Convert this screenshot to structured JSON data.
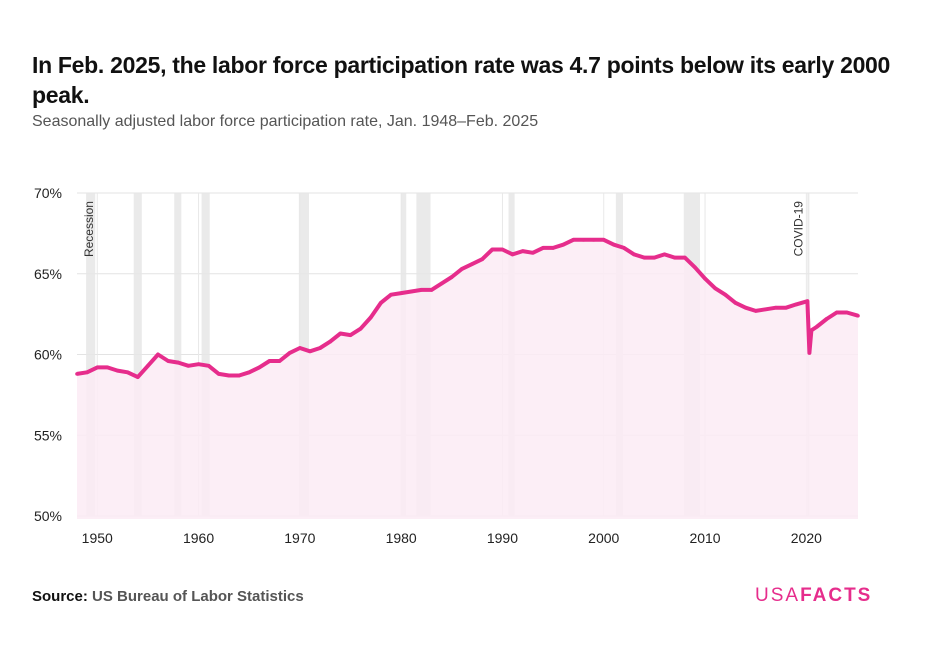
{
  "title": "In Feb. 2025, the labor force participation rate was 4.7 points below its early 2000 peak.",
  "subtitle": "Seasonally adjusted labor force participation rate, Jan. 1948–Feb. 2025",
  "source_label": "Source:",
  "source_value": "US Bureau of Labor Statistics",
  "logo": {
    "part1": "USA",
    "part2": "FACTS"
  },
  "colors": {
    "line": "#e62d8c",
    "fill": "#fcebf4",
    "recession": "#e6e6e6"
  },
  "chart_data": {
    "type": "area",
    "xlim": [
      1948,
      2025.1
    ],
    "ylim": [
      50,
      70
    ],
    "y_ticks": [
      50,
      55,
      60,
      65,
      70
    ],
    "y_tick_labels": [
      "50%",
      "55%",
      "60%",
      "65%",
      "70%"
    ],
    "x_ticks": [
      1950,
      1960,
      1970,
      1980,
      1990,
      2000,
      2010,
      2020
    ],
    "x_tick_labels": [
      "1950",
      "1960",
      "1970",
      "1980",
      "1990",
      "2000",
      "2010",
      "2020"
    ],
    "grid": true,
    "annotations": [
      {
        "text": "Recession",
        "x": 1949.9
      },
      {
        "text": "COVID-19",
        "x": 2019.9
      }
    ],
    "recessions": [
      [
        1948.9,
        1949.8
      ],
      [
        1953.6,
        1954.4
      ],
      [
        1957.6,
        1958.3
      ],
      [
        1960.3,
        1961.1
      ],
      [
        1969.9,
        1970.9
      ],
      [
        1980.0,
        1980.5
      ],
      [
        1981.5,
        1982.9
      ],
      [
        1990.6,
        1991.2
      ],
      [
        2001.2,
        2001.9
      ],
      [
        2007.9,
        2009.5
      ],
      [
        2020.1,
        2020.3
      ]
    ],
    "series": [
      {
        "x": [
          1948,
          1949,
          1950,
          1951,
          1952,
          1953,
          1954,
          1955,
          1956,
          1957,
          1958,
          1959,
          1960,
          1961,
          1962,
          1963,
          1964,
          1965,
          1966,
          1967,
          1968,
          1969,
          1970,
          1971,
          1972,
          1973,
          1974,
          1975,
          1976,
          1977,
          1978,
          1979,
          1980,
          1981,
          1982,
          1983,
          1984,
          1985,
          1986,
          1987,
          1988,
          1989,
          1990,
          1991,
          1992,
          1993,
          1994,
          1995,
          1996,
          1997,
          1998,
          1999,
          2000,
          2001,
          2002,
          2003,
          2004,
          2005,
          2006,
          2007,
          2008,
          2009,
          2010,
          2011,
          2012,
          2013,
          2014,
          2015,
          2016,
          2017,
          2018,
          2019,
          2020.1,
          2020.3,
          2020.5,
          2021,
          2022,
          2023,
          2024,
          2025.1
        ],
        "y": [
          58.8,
          58.9,
          59.2,
          59.2,
          59.0,
          58.9,
          58.6,
          59.3,
          60.0,
          59.6,
          59.5,
          59.3,
          59.4,
          59.3,
          58.8,
          58.7,
          58.7,
          58.9,
          59.2,
          59.6,
          59.6,
          60.1,
          60.4,
          60.2,
          60.4,
          60.8,
          61.3,
          61.2,
          61.6,
          62.3,
          63.2,
          63.7,
          63.8,
          63.9,
          64.0,
          64.0,
          64.4,
          64.8,
          65.3,
          65.6,
          65.9,
          66.5,
          66.5,
          66.2,
          66.4,
          66.3,
          66.6,
          66.6,
          66.8,
          67.1,
          67.1,
          67.1,
          67.1,
          66.8,
          66.6,
          66.2,
          66.0,
          66.0,
          66.2,
          66.0,
          66.0,
          65.4,
          64.7,
          64.1,
          63.7,
          63.2,
          62.9,
          62.7,
          62.8,
          62.9,
          62.9,
          63.1,
          63.3,
          60.1,
          61.5,
          61.7,
          62.2,
          62.6,
          62.6,
          62.4
        ]
      }
    ]
  }
}
